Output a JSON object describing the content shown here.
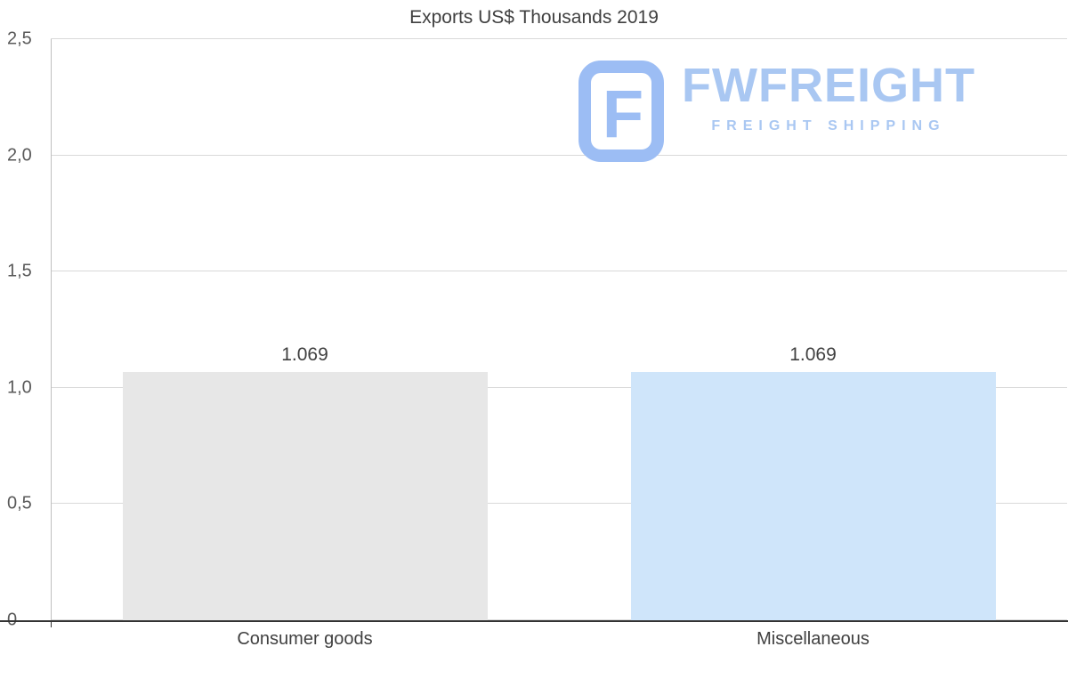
{
  "page": {
    "title": "Exports US$ Thousands 2019"
  },
  "watermark": {
    "brand": "FWFREIGHT",
    "tagline": "FREIGHT SHIPPING",
    "color": "#a9c7f2",
    "icon_color": "#9cbdf4",
    "icon": "f-monogram-icon"
  },
  "chart_data": {
    "type": "bar",
    "title": "Exports US$ Thousands 2019",
    "categories": [
      "Consumer goods",
      "Miscellaneous"
    ],
    "values": [
      1.069,
      1.069
    ],
    "value_labels": [
      "1.069",
      "1.069"
    ],
    "bar_colors": [
      "#e7e7e7",
      "#cfe5fa"
    ],
    "xlabel": "",
    "ylabel": "",
    "ylim": [
      0,
      2.5
    ],
    "yticks": [
      0,
      0.5,
      1.0,
      1.5,
      2.0,
      2.5
    ],
    "ytick_labels": [
      "0",
      "0,5",
      "1,0",
      "1,5",
      "2,0",
      "2,5"
    ],
    "grid": true,
    "legend": false
  }
}
